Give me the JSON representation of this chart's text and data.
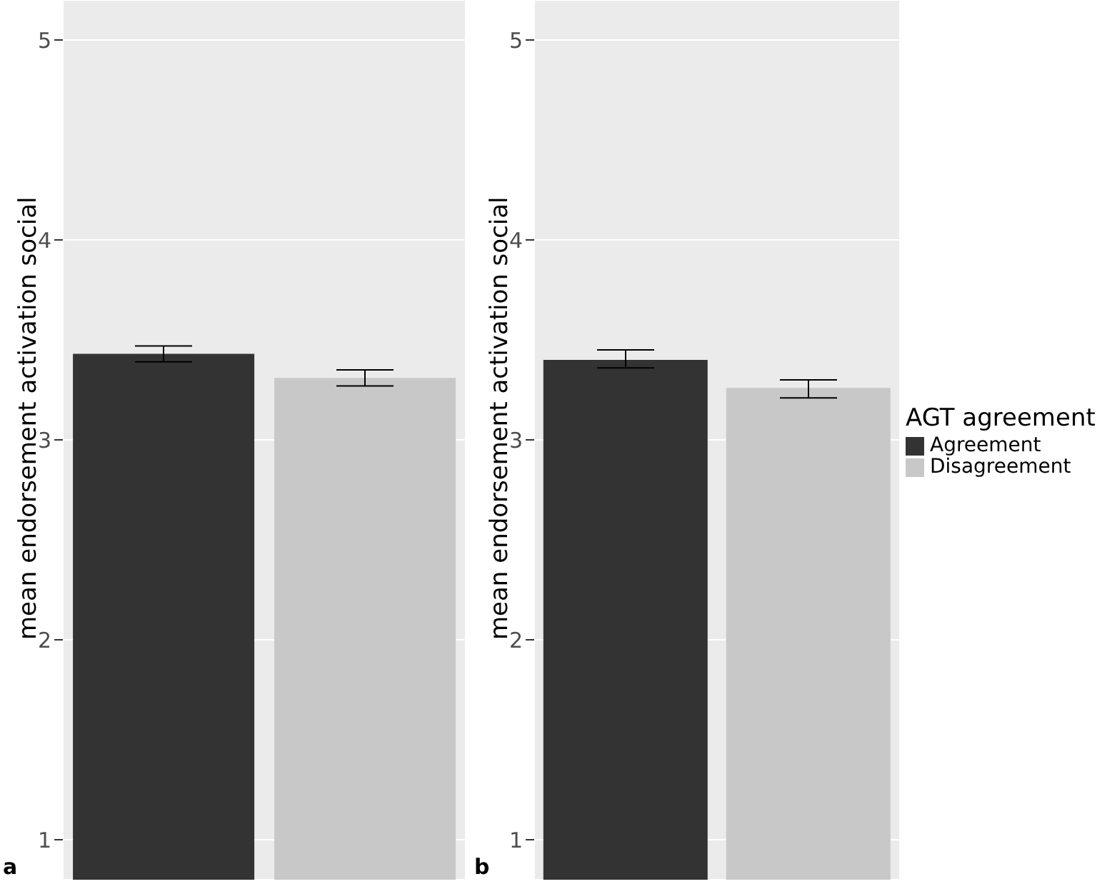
{
  "chart_data": [
    {
      "type": "bar",
      "ylabel": "mean endorsement activation social",
      "categories": [
        null,
        null
      ],
      "stacked": true,
      "ylim": [
        0.8,
        5.2
      ],
      "yticks": [
        1,
        2,
        3,
        4,
        5
      ],
      "grid": true,
      "legend": false,
      "tick_labels": "y",
      "annotations": [
        "a"
      ],
      "series": [
        {
          "color": "#333333",
          "values": [
            3.43,
            null
          ],
          "errors": [
            [
              3.39,
              3.47
            ],
            null
          ]
        },
        {
          "color": "#c8c8c8",
          "values": [
            null,
            3.31
          ],
          "errors": [
            null,
            [
              3.27,
              3.35
            ]
          ]
        }
      ]
    },
    {
      "type": "bar",
      "ylabel": "mean endorsement activation social",
      "categories": [
        null,
        null
      ],
      "stacked": true,
      "ylim": [
        0.8,
        5.2
      ],
      "yticks": [
        1,
        2,
        3,
        4,
        5
      ],
      "grid": true,
      "legend": "right",
      "legend_title": "AGT agreement",
      "tick_labels": "y",
      "annotations": [
        "b"
      ],
      "series": [
        {
          "name": "Agreement",
          "color": "#333333",
          "values": [
            3.4,
            null
          ],
          "errors": [
            [
              3.36,
              3.45
            ],
            null
          ]
        },
        {
          "name": "Disagreement",
          "color": "#c8c8c8",
          "values": [
            null,
            3.26
          ],
          "errors": [
            null,
            [
              3.21,
              3.3
            ]
          ]
        }
      ]
    }
  ]
}
